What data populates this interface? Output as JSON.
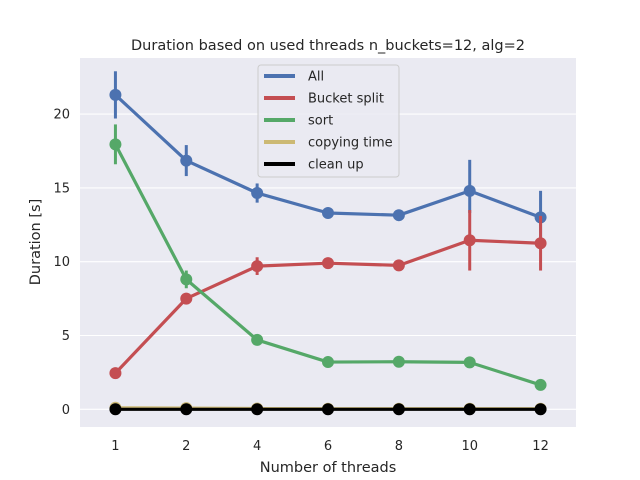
{
  "chart_data": {
    "type": "line",
    "title": "Duration based on used threads n_buckets=12, alg=2",
    "xlabel": "Number of threads",
    "ylabel": "Duration [s]",
    "categories": [
      "1",
      "2",
      "4",
      "6",
      "8",
      "10",
      "12"
    ],
    "ylim": [
      -1.2,
      23.8
    ],
    "yticks": [
      0,
      5,
      10,
      15,
      20
    ],
    "grid": true,
    "legend_position": "top-center",
    "series": [
      {
        "name": "All",
        "color": "#4c72b0",
        "values": [
          21.3,
          16.85,
          14.65,
          13.3,
          13.15,
          14.8,
          13.0
        ],
        "err_low": [
          19.7,
          15.8,
          14.0,
          13.2,
          13.05,
          13.3,
          11.3
        ],
        "err_high": [
          22.9,
          17.9,
          15.3,
          13.4,
          13.25,
          16.9,
          14.8
        ]
      },
      {
        "name": "Bucket split",
        "color": "#c44e52",
        "values": [
          2.45,
          7.5,
          9.7,
          9.9,
          9.75,
          11.45,
          11.25
        ],
        "err_low": [
          2.35,
          7.3,
          9.1,
          9.8,
          9.65,
          9.4,
          9.4
        ],
        "err_high": [
          2.55,
          7.7,
          10.3,
          10.0,
          9.85,
          13.5,
          13.1
        ]
      },
      {
        "name": "sort",
        "color": "#55a868",
        "values": [
          17.95,
          8.8,
          4.7,
          3.2,
          3.22,
          3.18,
          1.65
        ],
        "err_low": [
          16.6,
          8.2,
          4.6,
          3.1,
          3.12,
          3.08,
          1.55
        ],
        "err_high": [
          19.3,
          9.4,
          4.8,
          3.3,
          3.32,
          3.28,
          1.75
        ]
      },
      {
        "name": "copying time",
        "color": "#ccb974",
        "values": [
          0.1,
          0.08,
          0.05,
          0.04,
          0.04,
          0.04,
          0.04
        ],
        "err_low": [
          0.1,
          0.08,
          0.05,
          0.04,
          0.04,
          0.04,
          0.04
        ],
        "err_high": [
          0.1,
          0.08,
          0.05,
          0.04,
          0.04,
          0.04,
          0.04
        ]
      },
      {
        "name": "clean up",
        "color": "#000000",
        "values": [
          0.0,
          0.0,
          0.0,
          0.0,
          0.0,
          0.0,
          0.0
        ],
        "err_low": [
          0.0,
          0.0,
          0.0,
          0.0,
          0.0,
          0.0,
          0.0
        ],
        "err_high": [
          0.0,
          0.0,
          0.0,
          0.0,
          0.0,
          0.0,
          0.0
        ]
      }
    ]
  }
}
